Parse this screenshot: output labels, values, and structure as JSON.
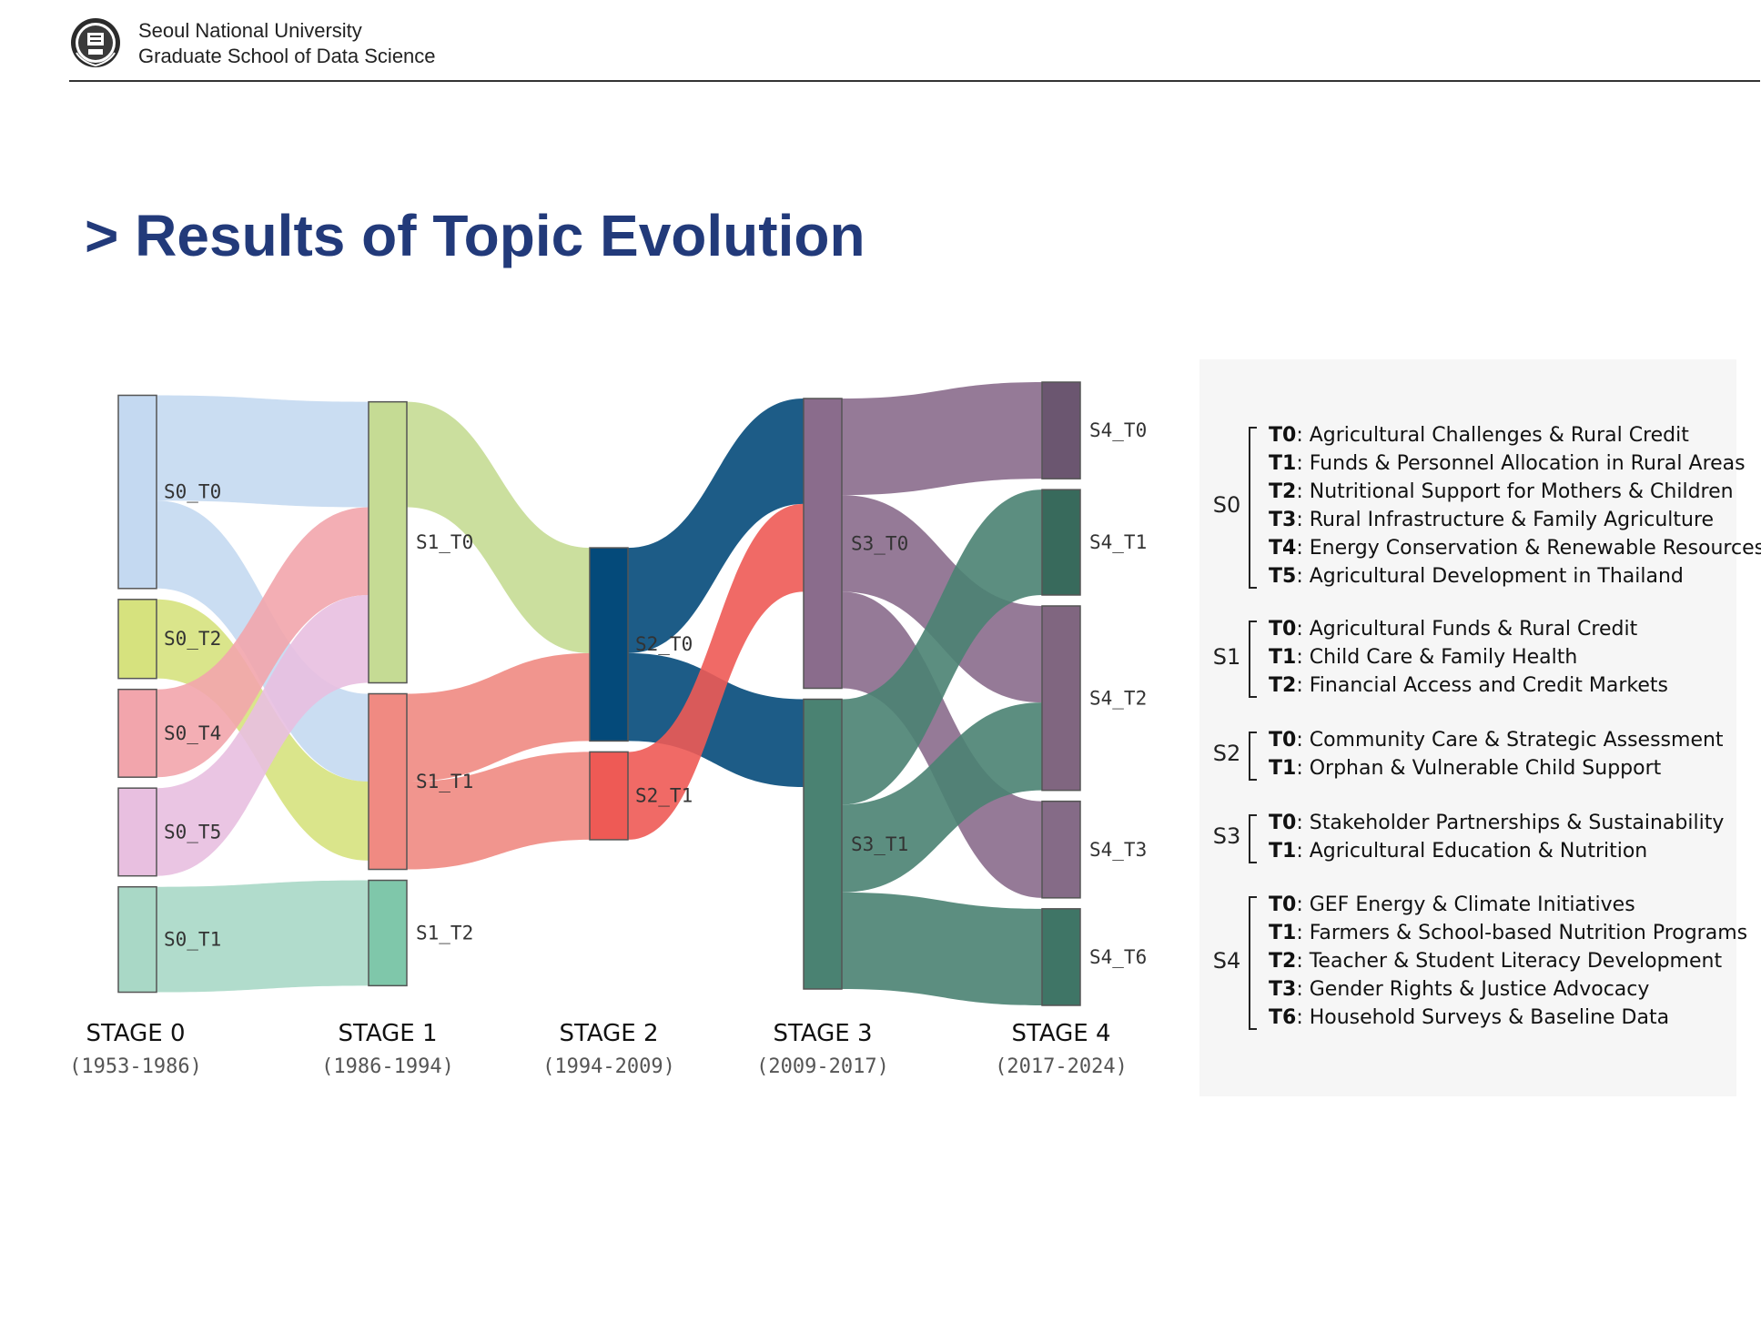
{
  "header": {
    "org_line1": "Seoul National University",
    "org_line2": "Graduate School of Data Science",
    "logo": "snu-emblem-icon"
  },
  "title": "> Results of Topic Evolution",
  "chart_data": {
    "type": "sankey",
    "stages": [
      {
        "label": "STAGE 0",
        "period": "(1953-1986)"
      },
      {
        "label": "STAGE 1",
        "period": "(1986-1994)"
      },
      {
        "label": "STAGE 2",
        "period": "(1994-2009)"
      },
      {
        "label": "STAGE 3",
        "period": "(2009-2017)"
      },
      {
        "label": "STAGE 4",
        "period": "(2017-2024)"
      }
    ],
    "nodes": [
      {
        "id": "S0_T0",
        "stage": 0,
        "color": "#c4d9f1"
      },
      {
        "id": "S0_T2",
        "stage": 0,
        "color": "#d6e27e"
      },
      {
        "id": "S0_T4",
        "stage": 0,
        "color": "#f2a5ac"
      },
      {
        "id": "S0_T5",
        "stage": 0,
        "color": "#e8bfe0"
      },
      {
        "id": "S0_T1",
        "stage": 0,
        "color": "#a9d8c6"
      },
      {
        "id": "S1_T0",
        "stage": 1,
        "color": "#c5db94"
      },
      {
        "id": "S1_T1",
        "stage": 1,
        "color": "#f08a82"
      },
      {
        "id": "S1_T2",
        "stage": 1,
        "color": "#7fc7aa"
      },
      {
        "id": "S2_T0",
        "stage": 2,
        "color": "#044a7a"
      },
      {
        "id": "S2_T1",
        "stage": 2,
        "color": "#ee5a55"
      },
      {
        "id": "S3_T0",
        "stage": 3,
        "color": "#8a6c8c"
      },
      {
        "id": "S3_T1",
        "stage": 3,
        "color": "#4a8272"
      },
      {
        "id": "S4_T0",
        "stage": 4,
        "color": "#6b5670"
      },
      {
        "id": "S4_T1",
        "stage": 4,
        "color": "#386a5c"
      },
      {
        "id": "S4_T2",
        "stage": 4,
        "color": "#806680"
      },
      {
        "id": "S4_T3",
        "stage": 4,
        "color": "#856b87"
      },
      {
        "id": "S4_T6",
        "stage": 4,
        "color": "#3f7566"
      }
    ],
    "links": [
      {
        "source": "S0_T0",
        "target": "S1_T0",
        "value": 12,
        "color": "#c4d9f1"
      },
      {
        "source": "S0_T0",
        "target": "S1_T1",
        "value": 10,
        "color": "#c4d9f1"
      },
      {
        "source": "S0_T2",
        "target": "S1_T1",
        "value": 9,
        "color": "#d6e27e"
      },
      {
        "source": "S0_T4",
        "target": "S1_T0",
        "value": 10,
        "color": "#f2a5ac"
      },
      {
        "source": "S0_T5",
        "target": "S1_T0",
        "value": 10,
        "color": "#e8bfe0"
      },
      {
        "source": "S0_T1",
        "target": "S1_T2",
        "value": 12,
        "color": "#a9d8c6"
      },
      {
        "source": "S1_T0",
        "target": "S2_T0",
        "value": 12,
        "color": "#c5db94"
      },
      {
        "source": "S1_T1",
        "target": "S2_T0",
        "value": 10,
        "color": "#f08a82"
      },
      {
        "source": "S1_T1",
        "target": "S2_T1",
        "value": 10,
        "color": "#f08a82"
      },
      {
        "source": "S2_T0",
        "target": "S3_T0",
        "value": 12,
        "color": "#044a7a"
      },
      {
        "source": "S2_T0",
        "target": "S3_T1",
        "value": 10,
        "color": "#044a7a"
      },
      {
        "source": "S2_T1",
        "target": "S3_T0",
        "value": 10,
        "color": "#ee5a55"
      },
      {
        "source": "S3_T0",
        "target": "S4_T0",
        "value": 11,
        "color": "#8a6c8c"
      },
      {
        "source": "S3_T0",
        "target": "S4_T2",
        "value": 11,
        "color": "#8a6c8c"
      },
      {
        "source": "S3_T0",
        "target": "S4_T3",
        "value": 11,
        "color": "#8a6c8c"
      },
      {
        "source": "S3_T1",
        "target": "S4_T1",
        "value": 12,
        "color": "#4a8272"
      },
      {
        "source": "S3_T1",
        "target": "S4_T2",
        "value": 10,
        "color": "#4a8272"
      },
      {
        "source": "S3_T1",
        "target": "S4_T6",
        "value": 11,
        "color": "#4a8272"
      }
    ]
  },
  "legend": [
    {
      "stage": "S0",
      "items": [
        {
          "code": "T0",
          "text": ": Agricultural Challenges & Rural Credit"
        },
        {
          "code": "T1",
          "text": ": Funds & Personnel Allocation in Rural Areas"
        },
        {
          "code": "T2",
          "text": ": Nutritional Support for Mothers & Children"
        },
        {
          "code": "T3",
          "text": ": Rural Infrastructure & Family Agriculture"
        },
        {
          "code": "T4",
          "text": ": Energy Conservation & Renewable Resources"
        },
        {
          "code": "T5",
          "text": ": Agricultural Development in Thailand"
        }
      ]
    },
    {
      "stage": "S1",
      "items": [
        {
          "code": "T0",
          "text": ": Agricultural Funds & Rural Credit"
        },
        {
          "code": "T1",
          "text": ": Child Care & Family Health"
        },
        {
          "code": "T2",
          "text": ": Financial Access and Credit Markets"
        }
      ]
    },
    {
      "stage": "S2",
      "items": [
        {
          "code": "T0",
          "text": ": Community Care & Strategic Assessment"
        },
        {
          "code": "T1",
          "text": ": Orphan & Vulnerable Child Support"
        }
      ]
    },
    {
      "stage": "S3",
      "items": [
        {
          "code": "T0",
          "text": ": Stakeholder Partnerships & Sustainability"
        },
        {
          "code": "T1",
          "text": ": Agricultural Education & Nutrition"
        }
      ]
    },
    {
      "stage": "S4",
      "items": [
        {
          "code": "T0",
          "text": ": GEF Energy & Climate Initiatives"
        },
        {
          "code": "T1",
          "text": ": Farmers & School-based Nutrition Programs"
        },
        {
          "code": "T2",
          "text": ": Teacher & Student Literacy Development"
        },
        {
          "code": "T3",
          "text": ": Gender Rights & Justice Advocacy"
        },
        {
          "code": "T6",
          "text": ": Household Surveys & Baseline Data"
        }
      ]
    }
  ]
}
